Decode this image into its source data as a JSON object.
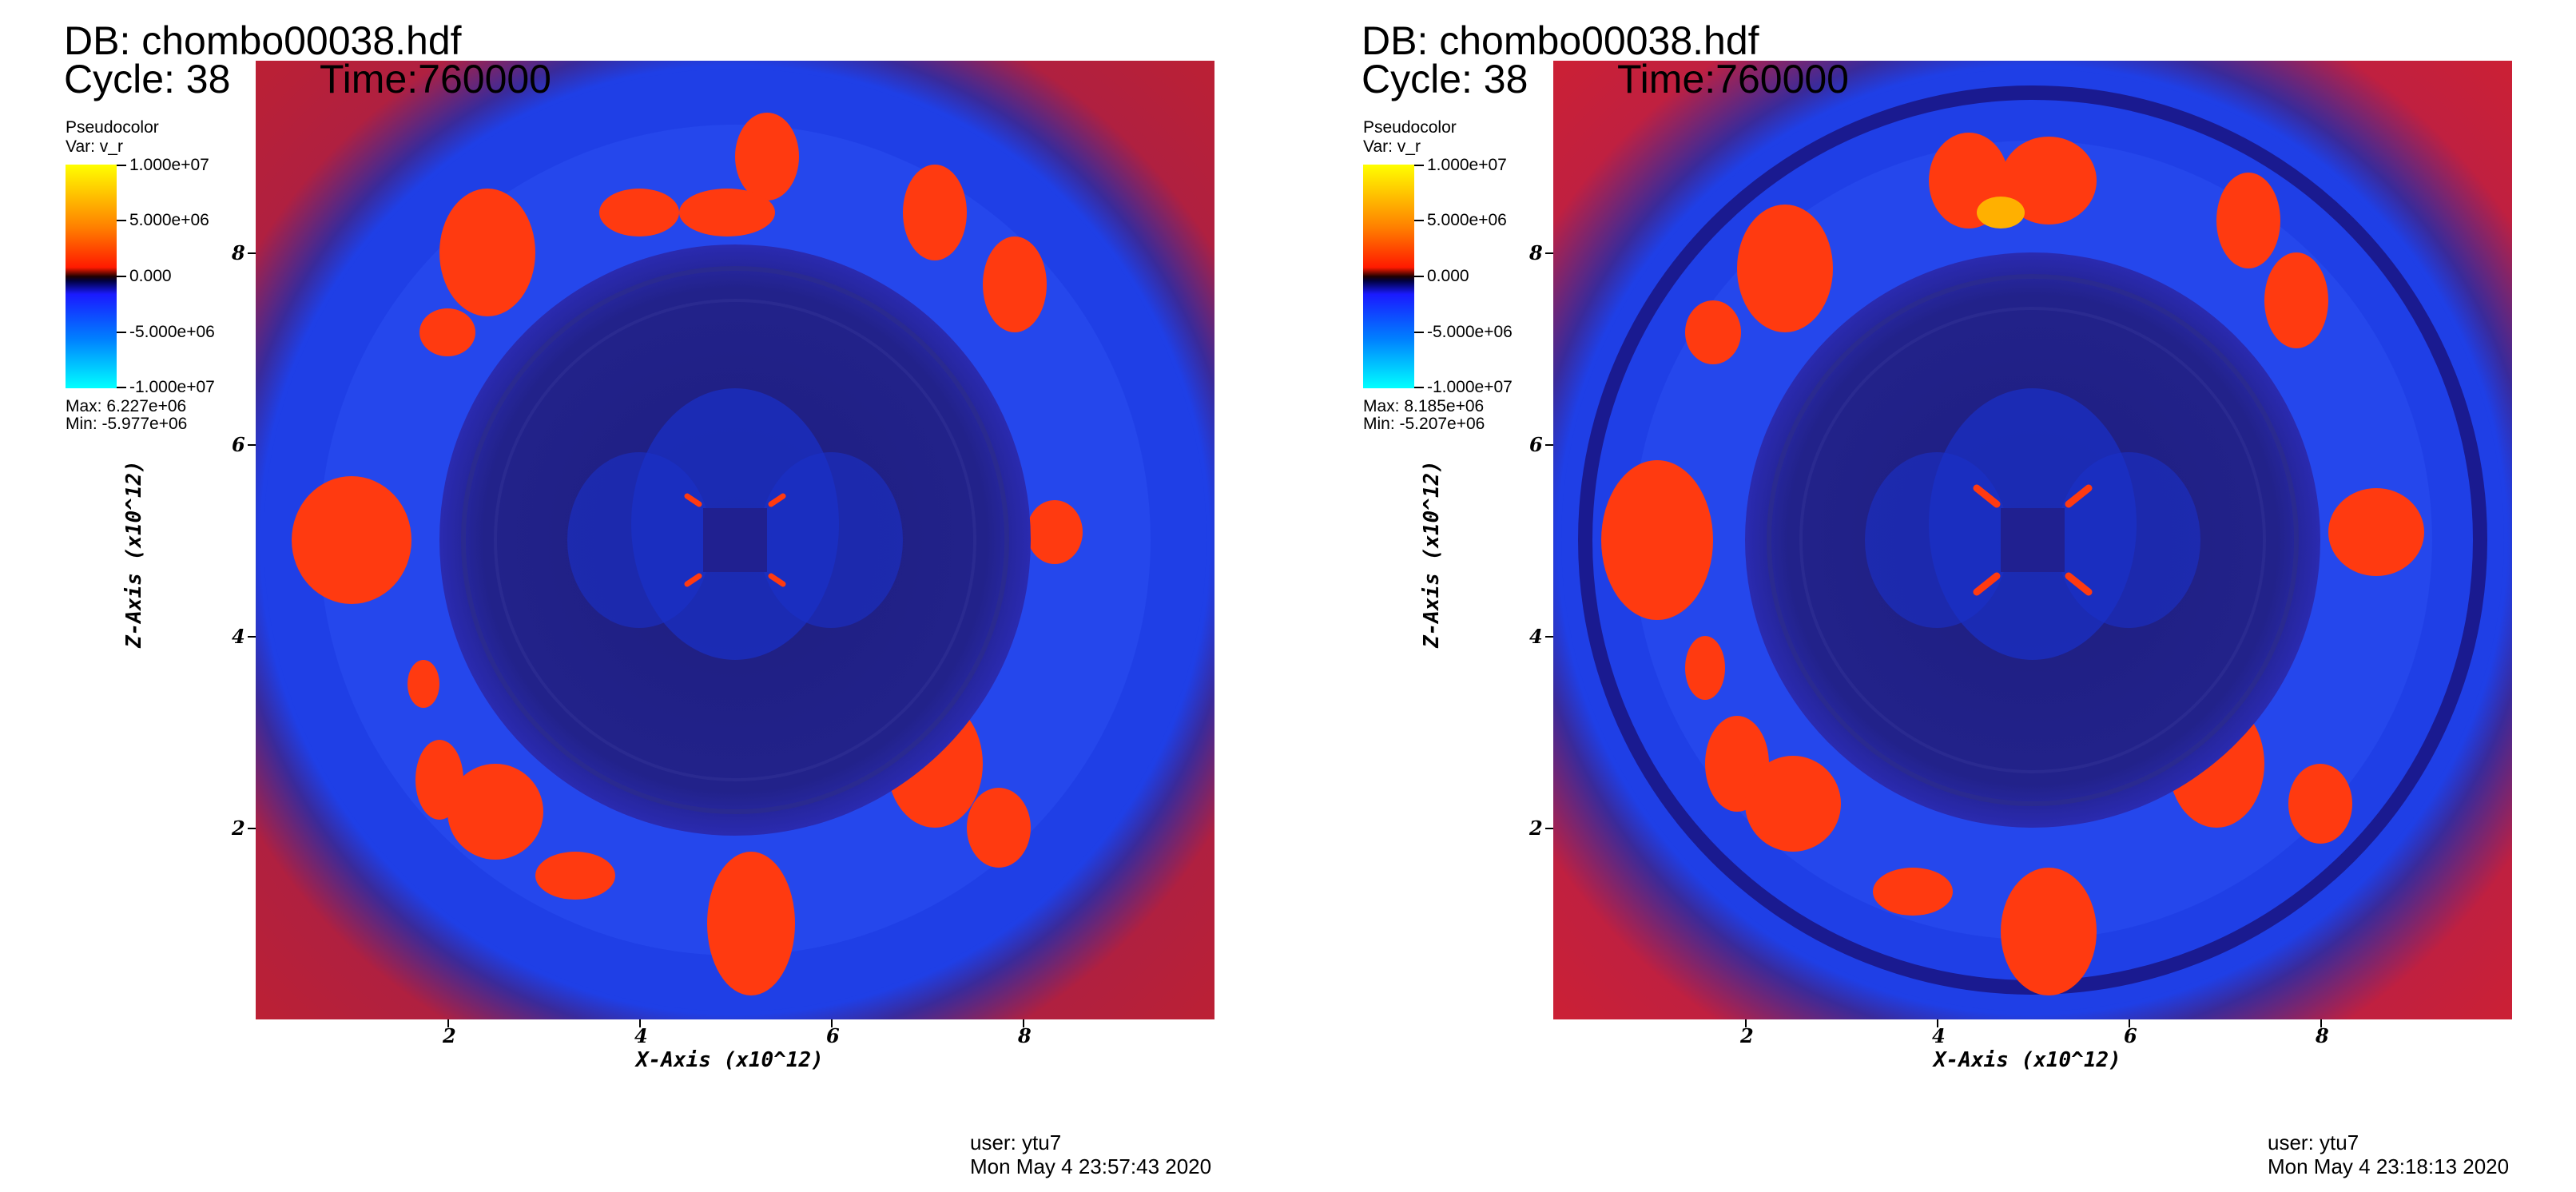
{
  "panels": [
    {
      "db_title": "DB: chombo00038.hdf",
      "cycle": "Cycle: 38",
      "time": "Time:760000",
      "legend": {
        "plot_type": "Pseudocolor",
        "var": "Var: v_r",
        "tick_labels": [
          "1.000e+07",
          "5.000e+06",
          "0.000",
          "-5.000e+06",
          "-1.000e+07"
        ],
        "max": "Max:  6.227e+06",
        "min": "Min: -5.977e+06"
      },
      "x_axis_title": "X-Axis (x10^12)",
      "y_axis_title": "Z-Axis (x10^12)",
      "x_ticks": [
        "2",
        "4",
        "6",
        "8"
      ],
      "y_ticks": [
        "8",
        "6",
        "4",
        "2"
      ],
      "user": "user: ytu7",
      "date": "Mon May  4 23:57:43 2020"
    },
    {
      "db_title": "DB: chombo00038.hdf",
      "cycle": "Cycle: 38",
      "time": "Time:760000",
      "legend": {
        "plot_type": "Pseudocolor",
        "var": "Var: v_r",
        "tick_labels": [
          "1.000e+07",
          "5.000e+06",
          "0.000",
          "-5.000e+06",
          "-1.000e+07"
        ],
        "max": "Max:  8.185e+06",
        "min": "Min: -5.207e+06"
      },
      "x_axis_title": "X-Axis (x10^12)",
      "y_axis_title": "Z-Axis (x10^12)",
      "x_ticks": [
        "2",
        "4",
        "6",
        "8"
      ],
      "y_ticks": [
        "8",
        "6",
        "4",
        "2"
      ],
      "user": "user: ytu7",
      "date": "Mon May  4 23:18:13 2020"
    }
  ],
  "colors": {
    "background_blue": "#1f3fe6",
    "core_navy": "#1a1a78",
    "positive_red": "#ff3a10",
    "colorbar_top": "#ffff00",
    "colorbar_bottom": "#00ffff"
  }
}
